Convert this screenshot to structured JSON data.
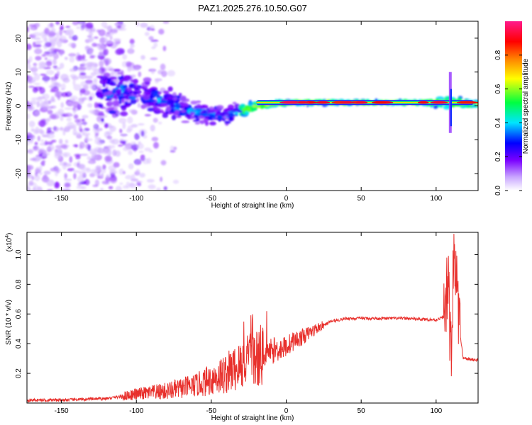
{
  "title": "PAZ1.2025.276.10.50.G07",
  "chart_data": [
    {
      "type": "heatmap",
      "title": "PAZ1.2025.276.10.50.G07",
      "xlabel": "Height of straight line (km)",
      "ylabel": "Frequency (Hz)",
      "xlim": [
        -173,
        128
      ],
      "ylim": [
        -25,
        25
      ],
      "xticks": [
        -150,
        -100,
        -50,
        0,
        50,
        100
      ],
      "xtick_labels": [
        "-150",
        "-100",
        "-50",
        "0",
        "50",
        "100"
      ],
      "yticks": [
        -20,
        -10,
        0,
        10,
        20
      ],
      "ytick_labels": [
        "-20",
        "-10",
        "0",
        "10",
        "20"
      ],
      "colorbar": {
        "label": "Normalized spectral amplitude",
        "range": [
          0,
          1
        ],
        "ticks": [
          0.0,
          0.2,
          0.4,
          0.6,
          0.8
        ],
        "tick_labels": [
          "0.0",
          "0.2",
          "0.4",
          "0.6",
          "0.8"
        ],
        "colors": [
          "#ffffff",
          "#7a00ff",
          "#0000ff",
          "#00e5ff",
          "#00ff40",
          "#ffff00",
          "#ff7f00",
          "#ff0000",
          "#ff1a8c"
        ]
      },
      "band": {
        "description_points": [
          {
            "x": -120,
            "freq": 4,
            "spread": 12
          },
          {
            "x": -100,
            "freq": 4,
            "spread": 6
          },
          {
            "x": -80,
            "freq": 1,
            "spread": 6
          },
          {
            "x": -60,
            "freq": -2,
            "spread": 5
          },
          {
            "x": -40,
            "freq": -3,
            "spread": 4
          },
          {
            "x": -20,
            "freq": 0,
            "spread": 1.5
          },
          {
            "x": 0,
            "freq": 1,
            "spread": 0.8
          },
          {
            "x": 50,
            "freq": 1,
            "spread": 0.6
          },
          {
            "x": 90,
            "freq": 1,
            "spread": 0.8
          },
          {
            "x": 110,
            "freq": 1,
            "spread": 3
          },
          {
            "x": 128,
            "freq": 0.5,
            "spread": 1
          }
        ]
      }
    },
    {
      "type": "line",
      "xlabel": "Height of straight line (km)",
      "ylabel": "SNR (10 * v/v)",
      "yscale_label": "(x10",
      "yscale_exp": "4",
      "yscale_close": ")",
      "xlim": [
        -173,
        128
      ],
      "ylim": [
        0,
        1.15
      ],
      "xticks": [
        -150,
        -100,
        -50,
        0,
        50,
        100
      ],
      "xtick_labels": [
        "-150",
        "-100",
        "-50",
        "0",
        "50",
        "100"
      ],
      "yticks": [
        0.2,
        0.4,
        0.6,
        0.8,
        1.0
      ],
      "ytick_labels": [
        "0.2",
        "0.4",
        "0.6",
        "0.8",
        "1.0"
      ],
      "color": "#e8302c",
      "series": [
        {
          "name": "SNR",
          "x": [
            -173,
            -150,
            -120,
            -100,
            -80,
            -60,
            -40,
            -25,
            -20,
            -10,
            0,
            5,
            10,
            20,
            30,
            40,
            60,
            80,
            100,
            105,
            108,
            110,
            112,
            115,
            118,
            128
          ],
          "y": [
            0.02,
            0.02,
            0.03,
            0.06,
            0.08,
            0.12,
            0.2,
            0.28,
            0.3,
            0.35,
            0.38,
            0.42,
            0.44,
            0.5,
            0.55,
            0.57,
            0.57,
            0.57,
            0.56,
            0.58,
            0.8,
            0.3,
            1.1,
            0.55,
            0.3,
            0.29
          ]
        }
      ]
    }
  ]
}
